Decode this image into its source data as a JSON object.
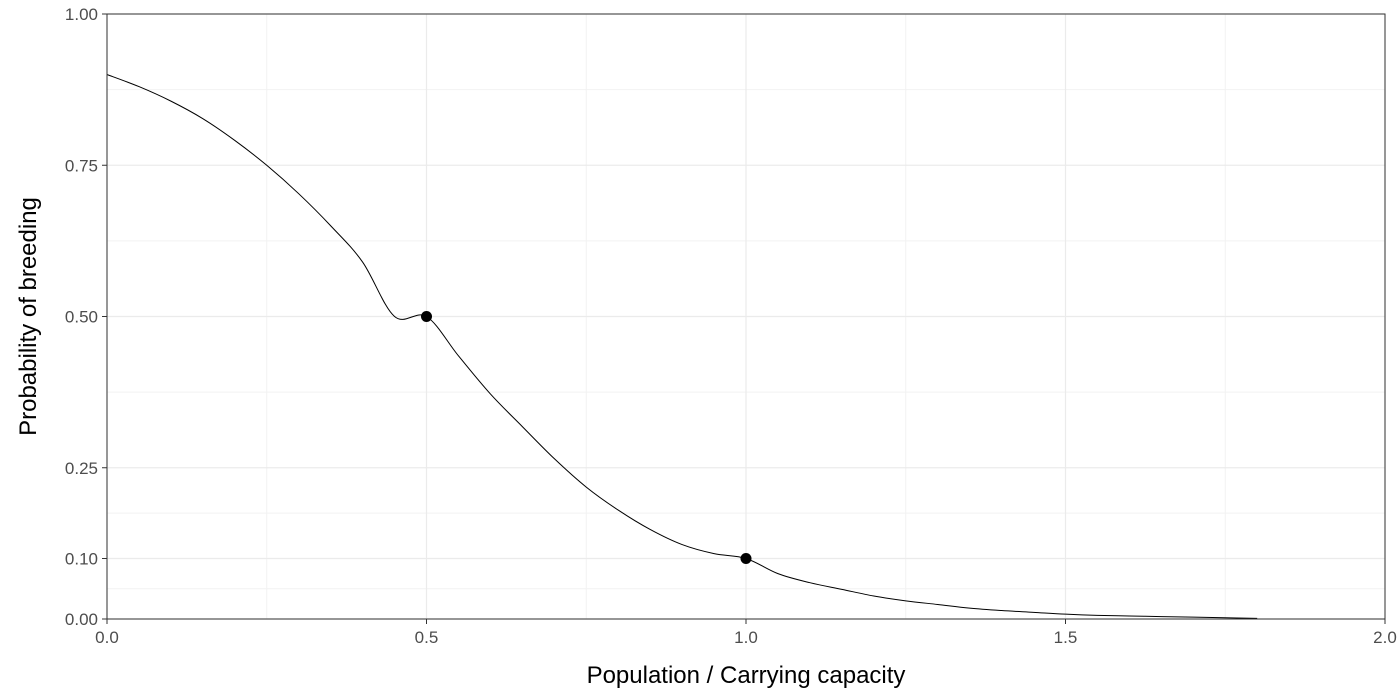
{
  "chart_data": {
    "type": "line",
    "title": "",
    "xlabel": "Population / Carrying capacity",
    "ylabel": "Probability of breeding",
    "xlim": [
      0,
      2
    ],
    "ylim": [
      0,
      1
    ],
    "x_ticks": [
      0,
      0.5,
      1,
      1.5,
      2
    ],
    "x_tick_labels": [
      "0.0",
      "0.5",
      "1.0",
      "1.5",
      "2.0"
    ],
    "y_ticks": [
      0,
      0.1,
      0.25,
      0.5,
      0.75,
      1
    ],
    "y_tick_labels": [
      "0.00",
      "0.10",
      "0.25",
      "0.50",
      "0.75",
      "1.00"
    ],
    "grid": true,
    "series": [
      {
        "x": [
          0,
          0.05,
          0.1,
          0.15,
          0.2,
          0.25,
          0.3,
          0.35,
          0.4,
          0.45,
          0.5,
          0.55,
          0.6,
          0.65,
          0.7,
          0.75,
          0.8,
          0.85,
          0.9,
          0.95,
          1.0,
          1.05,
          1.1,
          1.15,
          1.2,
          1.25,
          1.3,
          1.35,
          1.4,
          1.45,
          1.5,
          1.55,
          1.6,
          1.65,
          1.7,
          1.75,
          1.8
        ],
        "y": [
          0.9,
          0.88,
          0.856,
          0.827,
          0.791,
          0.75,
          0.703,
          0.65,
          0.59,
          0.5,
          0.5,
          0.435,
          0.372,
          0.318,
          0.265,
          0.218,
          0.18,
          0.148,
          0.123,
          0.108,
          0.1,
          0.075,
          0.06,
          0.049,
          0.038,
          0.03,
          0.024,
          0.018,
          0.014,
          0.011,
          0.008,
          0.006,
          0.005,
          0.004,
          0.003,
          0.002,
          0.001
        ],
        "color": "#000000"
      }
    ],
    "points": [
      {
        "x": 0.5,
        "y": 0.5
      },
      {
        "x": 1.0,
        "y": 0.1
      }
    ]
  }
}
